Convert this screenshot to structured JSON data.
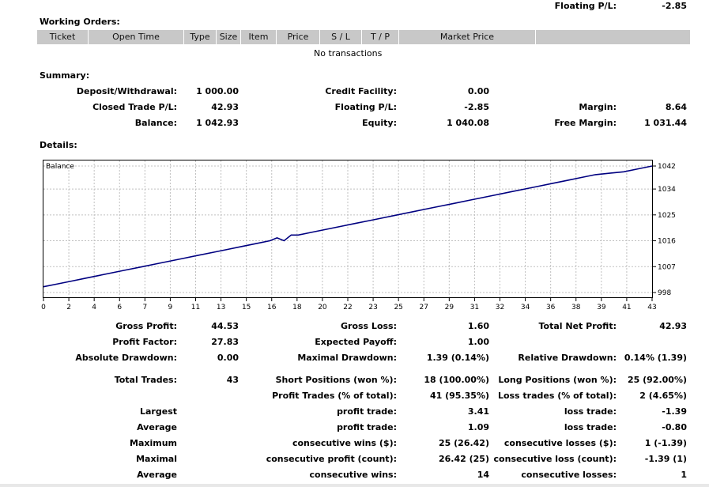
{
  "top": {
    "label": "Floating P/L:",
    "value": "-2.85"
  },
  "working_orders": {
    "title": "Working Orders:",
    "columns": [
      "Ticket",
      "Open Time",
      "Type",
      "Size",
      "Item",
      "Price",
      "S / L",
      "T / P",
      "Market Price",
      ""
    ],
    "empty_text": "No transactions"
  },
  "summary": {
    "title": "Summary:",
    "deposit_label": "Deposit/Withdrawal:",
    "deposit_value": "1 000.00",
    "credit_label": "Credit Facility:",
    "credit_value": "0.00",
    "closed_label": "Closed Trade P/L:",
    "closed_value": "42.93",
    "floating_label": "Floating P/L:",
    "floating_value": "-2.85",
    "margin_label": "Margin:",
    "margin_value": "8.64",
    "balance_label": "Balance:",
    "balance_value": "1 042.93",
    "equity_label": "Equity:",
    "equity_value": "1 040.08",
    "free_margin_label": "Free Margin:",
    "free_margin_value": "1 031.44"
  },
  "details": {
    "title": "Details:"
  },
  "chart_data": {
    "type": "line",
    "legend_label": "Balance",
    "x_ticks": [
      "0",
      "2",
      "4",
      "6",
      "7",
      "9",
      "11",
      "13",
      "15",
      "16",
      "18",
      "20",
      "22",
      "23",
      "25",
      "27",
      "29",
      "31",
      "32",
      "34",
      "36",
      "38",
      "39",
      "41",
      "43"
    ],
    "y_ticks": [
      "998",
      "1007",
      "1016",
      "1025",
      "1034",
      "1042"
    ],
    "ylim": [
      998,
      1042
    ],
    "xlim": [
      0,
      43
    ],
    "grid": true,
    "series": [
      {
        "color": "#000080",
        "x": [
          0,
          1,
          2,
          3,
          4,
          5,
          6,
          7,
          8,
          9,
          10,
          11,
          12,
          13,
          14,
          15,
          16,
          16.5,
          17,
          17.5,
          18,
          19,
          20,
          21,
          22,
          23,
          24,
          25,
          26,
          27,
          28,
          29,
          30,
          31,
          32,
          33,
          34,
          35,
          36,
          37,
          38,
          39,
          40,
          41,
          42,
          43
        ],
        "y": [
          1000,
          1001,
          1002,
          1003,
          1004,
          1005,
          1006,
          1007,
          1008,
          1009,
          1010,
          1011,
          1012,
          1013,
          1014,
          1015,
          1016,
          1017,
          1016,
          1018,
          1018,
          1019,
          1020,
          1021,
          1022,
          1023,
          1024,
          1025,
          1026,
          1027,
          1028,
          1029,
          1030,
          1031,
          1032,
          1033,
          1034,
          1035,
          1036,
          1037,
          1038,
          1039,
          1039.5,
          1040,
          1041,
          1042
        ]
      }
    ]
  },
  "stats": {
    "gross_profit_label": "Gross Profit:",
    "gross_profit": "44.53",
    "gross_loss_label": "Gross Loss:",
    "gross_loss": "1.60",
    "total_net_label": "Total Net Profit:",
    "total_net": "42.93",
    "profit_factor_label": "Profit Factor:",
    "profit_factor": "27.83",
    "expected_payoff_label": "Expected Payoff:",
    "expected_payoff": "1.00",
    "abs_dd_label": "Absolute Drawdown:",
    "abs_dd": "0.00",
    "max_dd_label": "Maximal Drawdown:",
    "max_dd": "1.39 (0.14%)",
    "rel_dd_label": "Relative Drawdown:",
    "rel_dd": "0.14% (1.39)",
    "total_trades_label": "Total Trades:",
    "total_trades": "43",
    "short_label": "Short Positions (won %):",
    "short": "18 (100.00%)",
    "long_label": "Long Positions (won %):",
    "long": "25 (92.00%)",
    "profit_trades_label": "Profit Trades (% of total):",
    "profit_trades": "41 (95.35%)",
    "loss_trades_label": "Loss trades (% of total):",
    "loss_trades": "2 (4.65%)",
    "largest_label": "Largest",
    "largest_profit_label": "profit trade:",
    "largest_profit": "3.41",
    "largest_loss_label": "loss trade:",
    "largest_loss": "-1.39",
    "average_label": "Average",
    "average_profit_label": "profit trade:",
    "average_profit": "1.09",
    "average_loss_label": "loss trade:",
    "average_loss": "-0.80",
    "maximum_label": "Maximum",
    "max_cons_wins_label": "consecutive wins ($):",
    "max_cons_wins": "25 (26.42)",
    "max_cons_losses_label": "consecutive losses ($):",
    "max_cons_losses": "1 (-1.39)",
    "maximal_label": "Maximal",
    "maximal_cons_profit_label": "consecutive profit (count):",
    "maximal_cons_profit": "26.42 (25)",
    "maximal_cons_loss_label": "consecutive loss (count):",
    "maximal_cons_loss": "-1.39 (1)",
    "avg2_label": "Average",
    "avg_cons_wins_label": "consecutive wins:",
    "avg_cons_wins": "14",
    "avg_cons_losses_label": "consecutive losses:",
    "avg_cons_losses": "1"
  }
}
